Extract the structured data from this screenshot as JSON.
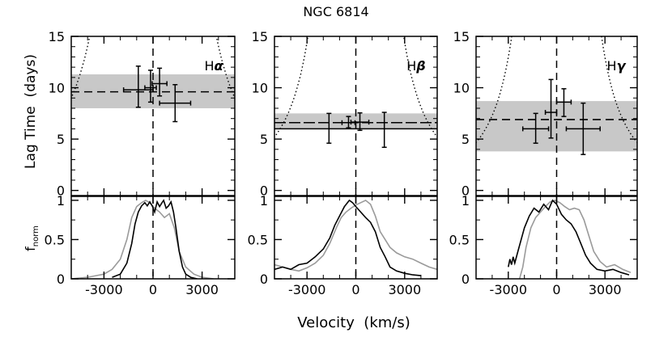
{
  "figure": {
    "title": "NGC 6814",
    "xlabel": "Velocity  (km/s)",
    "ylabel_top": "Lag Time  (days)",
    "ylabel_bottom": "f",
    "ylabel_bottom_sub": "norm"
  },
  "chart_data": {
    "type": "scatter",
    "title": "NGC 6814",
    "xlabel": "Velocity (km/s)",
    "ylabel_top": "Lag Time (days)",
    "ylabel_bottom": "f_norm",
    "xlim": [
      -5000,
      5000
    ],
    "top_ylim": [
      -0.5,
      15
    ],
    "bottom_ylim": [
      0,
      1.05
    ],
    "x_ticks": [
      -3000,
      0,
      3000
    ],
    "top_y_ticks": [
      0,
      5,
      10,
      15
    ],
    "bottom_y_ticks": [
      0,
      0.5,
      1
    ],
    "x_tick_labels": [
      "-3000",
      "0",
      "3000"
    ],
    "top_y_tick_labels": [
      "0",
      "5",
      "10",
      "15"
    ],
    "bottom_y_tick_labels": [
      "0",
      "0.5",
      "1"
    ],
    "panels": [
      {
        "line": "Hα",
        "line_base": "H",
        "line_greek": "α",
        "mean_lag": 9.6,
        "band": [
          8.0,
          11.3
        ],
        "mean_solid": false,
        "virial_k": 5000,
        "points": [
          {
            "x": -900,
            "y": 9.8,
            "xerr": 900,
            "yerr_lo": 1.7,
            "yerr_hi": 2.3
          },
          {
            "x": -150,
            "y": 10.0,
            "xerr": 350,
            "yerr_lo": 1.4,
            "yerr_hi": 1.7
          },
          {
            "x": 400,
            "y": 10.4,
            "xerr": 450,
            "yerr_lo": 1.2,
            "yerr_hi": 1.5
          },
          {
            "x": 1350,
            "y": 8.5,
            "xerr": 950,
            "yerr_lo": 1.8,
            "yerr_hi": 1.8
          }
        ],
        "profile_black": [
          [
            -2500,
            0.02
          ],
          [
            -2000,
            0.06
          ],
          [
            -1600,
            0.2
          ],
          [
            -1300,
            0.45
          ],
          [
            -1100,
            0.7
          ],
          [
            -900,
            0.85
          ],
          [
            -700,
            0.93
          ],
          [
            -500,
            0.97
          ],
          [
            -350,
            0.93
          ],
          [
            -200,
            0.98
          ],
          [
            -50,
            0.93
          ],
          [
            100,
            0.85
          ],
          [
            250,
            0.98
          ],
          [
            400,
            0.92
          ],
          [
            550,
            0.97
          ],
          [
            650,
            1.0
          ],
          [
            800,
            0.9
          ],
          [
            950,
            0.93
          ],
          [
            1100,
            0.98
          ],
          [
            1250,
            0.85
          ],
          [
            1400,
            0.65
          ],
          [
            1600,
            0.35
          ],
          [
            1800,
            0.15
          ],
          [
            2000,
            0.06
          ],
          [
            2300,
            0.02
          ],
          [
            2700,
            0.0
          ]
        ],
        "profile_gray": [
          [
            -5000,
            0.0
          ],
          [
            -4000,
            0.02
          ],
          [
            -3000,
            0.06
          ],
          [
            -2500,
            0.12
          ],
          [
            -2000,
            0.25
          ],
          [
            -1600,
            0.5
          ],
          [
            -1300,
            0.78
          ],
          [
            -1000,
            0.92
          ],
          [
            -700,
            0.97
          ],
          [
            -450,
            1.0
          ],
          [
            -200,
            0.97
          ],
          [
            100,
            0.9
          ],
          [
            400,
            0.85
          ],
          [
            700,
            0.78
          ],
          [
            1000,
            0.83
          ],
          [
            1300,
            0.65
          ],
          [
            1600,
            0.35
          ],
          [
            2000,
            0.15
          ],
          [
            2500,
            0.06
          ],
          [
            3000,
            0.02
          ],
          [
            3700,
            0.0
          ]
        ]
      },
      {
        "line": "Hβ",
        "line_base": "H",
        "line_greek": "β",
        "mean_lag": 6.6,
        "band": [
          6.0,
          7.5
        ],
        "mean_solid": true,
        "virial_k": 3800,
        "points": [
          {
            "x": -1650,
            "y": 6.0,
            "xerr": 0,
            "yerr_lo": 1.4,
            "yerr_hi": 1.5
          },
          {
            "x": -450,
            "y": 6.6,
            "xerr": 400,
            "yerr_lo": 0.5,
            "yerr_hi": 0.6
          },
          {
            "x": 250,
            "y": 6.65,
            "xerr": 550,
            "yerr_lo": 0.8,
            "yerr_hi": 0.9
          },
          {
            "x": 1750,
            "y": 6.0,
            "xerr": 0,
            "yerr_lo": 1.8,
            "yerr_hi": 1.6
          }
        ],
        "profile_black": [
          [
            -5000,
            0.12
          ],
          [
            -4500,
            0.15
          ],
          [
            -4000,
            0.12
          ],
          [
            -3500,
            0.18
          ],
          [
            -3000,
            0.2
          ],
          [
            -2500,
            0.28
          ],
          [
            -2000,
            0.38
          ],
          [
            -1600,
            0.52
          ],
          [
            -1300,
            0.68
          ],
          [
            -1000,
            0.8
          ],
          [
            -700,
            0.92
          ],
          [
            -400,
            1.0
          ],
          [
            -200,
            0.97
          ],
          [
            0,
            0.92
          ],
          [
            300,
            0.85
          ],
          [
            600,
            0.78
          ],
          [
            900,
            0.72
          ],
          [
            1200,
            0.6
          ],
          [
            1500,
            0.4
          ],
          [
            1800,
            0.28
          ],
          [
            2100,
            0.15
          ],
          [
            2500,
            0.1
          ],
          [
            3000,
            0.07
          ],
          [
            3500,
            0.05
          ],
          [
            4000,
            0.04
          ]
        ],
        "profile_gray": [
          [
            -5000,
            0.18
          ],
          [
            -4500,
            0.15
          ],
          [
            -4000,
            0.12
          ],
          [
            -3500,
            0.1
          ],
          [
            -3000,
            0.14
          ],
          [
            -2500,
            0.2
          ],
          [
            -2000,
            0.3
          ],
          [
            -1600,
            0.45
          ],
          [
            -1200,
            0.65
          ],
          [
            -900,
            0.78
          ],
          [
            -600,
            0.85
          ],
          [
            -300,
            0.9
          ],
          [
            0,
            0.94
          ],
          [
            300,
            0.97
          ],
          [
            600,
            1.0
          ],
          [
            900,
            0.95
          ],
          [
            1200,
            0.8
          ],
          [
            1500,
            0.6
          ],
          [
            1800,
            0.5
          ],
          [
            2100,
            0.4
          ],
          [
            2500,
            0.33
          ],
          [
            3000,
            0.28
          ],
          [
            3500,
            0.25
          ],
          [
            4000,
            0.2
          ],
          [
            4500,
            0.15
          ],
          [
            5000,
            0.12
          ]
        ]
      },
      {
        "line": "Hγ",
        "line_base": "H",
        "line_greek": "γ",
        "mean_lag": 6.9,
        "band": [
          3.8,
          8.7
        ],
        "mean_solid": false,
        "virial_k": 3600,
        "points": [
          {
            "x": -1300,
            "y": 6.0,
            "xerr": 800,
            "yerr_lo": 1.4,
            "yerr_hi": 1.5
          },
          {
            "x": -350,
            "y": 7.6,
            "xerr": 350,
            "yerr_lo": 2.5,
            "yerr_hi": 3.2
          },
          {
            "x": 450,
            "y": 8.6,
            "xerr": 450,
            "yerr_lo": 1.4,
            "yerr_hi": 1.3
          },
          {
            "x": 1650,
            "y": 6.0,
            "xerr": 1050,
            "yerr_lo": 2.5,
            "yerr_hi": 2.5
          }
        ],
        "profile_black": [
          [
            -3000,
            0.15
          ],
          [
            -2900,
            0.25
          ],
          [
            -2800,
            0.18
          ],
          [
            -2700,
            0.28
          ],
          [
            -2600,
            0.2
          ],
          [
            -2400,
            0.35
          ],
          [
            -2200,
            0.5
          ],
          [
            -2000,
            0.65
          ],
          [
            -1700,
            0.8
          ],
          [
            -1400,
            0.9
          ],
          [
            -1100,
            0.85
          ],
          [
            -800,
            0.95
          ],
          [
            -500,
            0.88
          ],
          [
            -250,
            1.0
          ],
          [
            0,
            0.95
          ],
          [
            300,
            0.82
          ],
          [
            600,
            0.75
          ],
          [
            900,
            0.7
          ],
          [
            1200,
            0.6
          ],
          [
            1500,
            0.45
          ],
          [
            1800,
            0.3
          ],
          [
            2100,
            0.2
          ],
          [
            2500,
            0.12
          ],
          [
            3000,
            0.1
          ],
          [
            3500,
            0.12
          ],
          [
            4000,
            0.08
          ],
          [
            4500,
            0.05
          ]
        ],
        "profile_gray": [
          [
            -2300,
            0.0
          ],
          [
            -2100,
            0.15
          ],
          [
            -1900,
            0.4
          ],
          [
            -1600,
            0.65
          ],
          [
            -1300,
            0.78
          ],
          [
            -1000,
            0.85
          ],
          [
            -700,
            0.92
          ],
          [
            -400,
            0.98
          ],
          [
            -100,
            1.0
          ],
          [
            200,
            0.97
          ],
          [
            500,
            0.92
          ],
          [
            800,
            0.88
          ],
          [
            1100,
            0.9
          ],
          [
            1400,
            0.88
          ],
          [
            1700,
            0.75
          ],
          [
            2000,
            0.55
          ],
          [
            2300,
            0.35
          ],
          [
            2700,
            0.22
          ],
          [
            3100,
            0.15
          ],
          [
            3600,
            0.18
          ],
          [
            4100,
            0.12
          ],
          [
            4600,
            0.08
          ]
        ]
      }
    ]
  }
}
